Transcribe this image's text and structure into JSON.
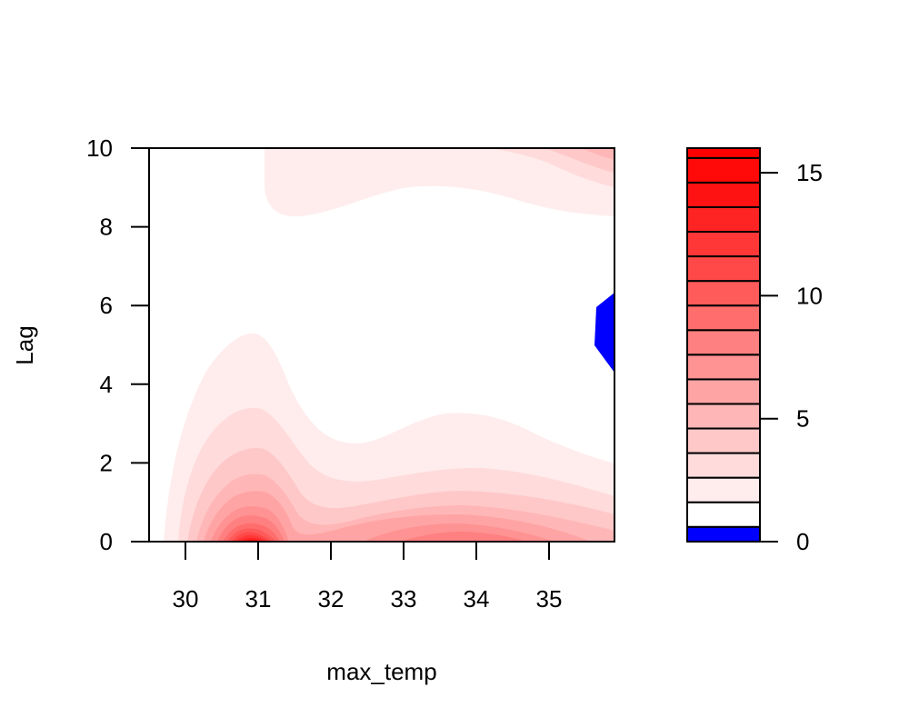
{
  "chart_data": {
    "type": "heatmap",
    "subtype": "filled-contour",
    "title": "",
    "xlabel": "max_temp",
    "ylabel": "Lag",
    "xlim": [
      29.5,
      35.9
    ],
    "ylim": [
      0,
      10
    ],
    "x_ticks": [
      "30",
      "31",
      "32",
      "33",
      "34",
      "35"
    ],
    "y_ticks": [
      "0",
      "2",
      "4",
      "6",
      "8",
      "10"
    ],
    "colorbar": {
      "ticks": [
        "0",
        "5",
        "10",
        "15"
      ],
      "breaks": [
        0,
        0.6,
        1.6,
        2.6,
        3.6,
        4.6,
        5.6,
        6.6,
        7.6,
        8.6,
        9.6,
        10.6,
        11.6,
        12.6,
        13.6,
        14.6,
        15.6,
        16.0
      ],
      "colors": [
        "#0000ff",
        "#ffffff",
        "#ffeded",
        "#ffdbdb",
        "#ffc8c8",
        "#ffb6b6",
        "#ffa4a4",
        "#ff9292",
        "#ff8080",
        "#ff6d6d",
        "#ff5b5b",
        "#ff4949",
        "#ff3737",
        "#ff2424",
        "#ff1212",
        "#ff0909",
        "#ff0000"
      ]
    },
    "peaks": [
      {
        "x": 31.0,
        "y": 0.0,
        "value": 16.0
      },
      {
        "x": 33.7,
        "y": 0.0,
        "value": 6.5
      },
      {
        "x": 35.9,
        "y": 10.0,
        "value": 4.8
      }
    ],
    "low_region": {
      "x": 35.8,
      "y": 5.3,
      "value": 0.4
    }
  }
}
